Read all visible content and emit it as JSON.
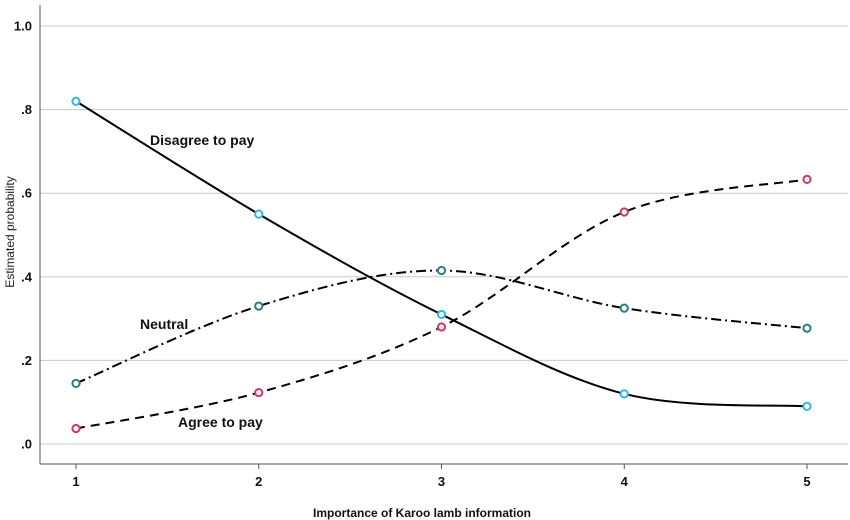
{
  "chart_data": {
    "type": "line",
    "xlabel": "Importance of Karoo lamb information",
    "ylabel": "Estimated probability",
    "x": [
      1,
      2,
      3,
      4,
      5
    ],
    "x_tick_labels": [
      "1",
      "2",
      "3",
      "4",
      "5"
    ],
    "ylim": [
      0,
      1.0
    ],
    "y_ticks": [
      0,
      0.2,
      0.4,
      0.6,
      0.8,
      1.0
    ],
    "y_tick_labels": [
      ".0",
      ".2",
      ".4",
      ".6",
      ".8",
      "1.0"
    ],
    "grid": "horizontal",
    "series": [
      {
        "name": "Disagree to pay",
        "values": [
          0.82,
          0.55,
          0.31,
          0.12,
          0.09
        ],
        "line_style": "solid",
        "marker_color": "#33b5e5"
      },
      {
        "name": "Neutral",
        "values": [
          0.145,
          0.33,
          0.415,
          0.325,
          0.277
        ],
        "line_style": "dash-dot",
        "marker_color": "#2a7f7f"
      },
      {
        "name": "Agree to pay",
        "values": [
          0.037,
          0.123,
          0.28,
          0.555,
          0.633
        ],
        "line_style": "dashed",
        "marker_color": "#d6336c"
      }
    ]
  }
}
